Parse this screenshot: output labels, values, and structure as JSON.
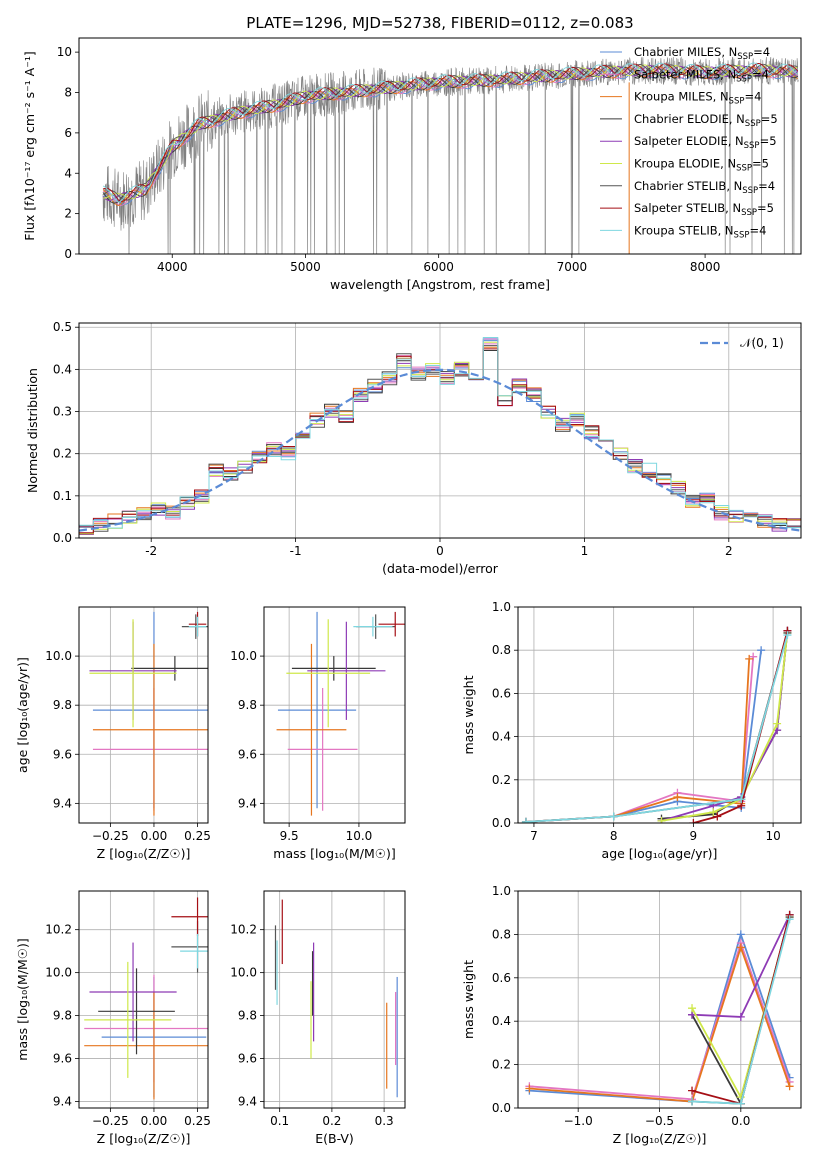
{
  "figure_title": "PLATE=1296, MJD=52738, FIBERID=0112, z=0.083",
  "colors": {
    "Chabrier MILES": "#5b8bd6",
    "Salpeter MILES": "#e377c2",
    "Kroupa MILES": "#e6761f",
    "Chabrier ELODIE": "#3a3a3a",
    "Salpeter ELODIE": "#8e3bb5",
    "Kroupa ELODIE": "#cfe84a",
    "Chabrier STELIB": "#555555",
    "Salpeter STELIB": "#a50f15",
    "Kroupa STELIB": "#7fd7e0",
    "data": "#808080",
    "normal": "#5b8bd6"
  },
  "chart_data": [
    {
      "type": "line",
      "id": "spectrum",
      "title": "PLATE=1296, MJD=52738, FIBERID=0112, z=0.083",
      "xlabel": "wavelength [Angstrom, rest frame]",
      "ylabel": "Flux [fλ10⁻¹⁷ erg cm⁻² s⁻¹ A⁻¹]",
      "xlim": [
        3300,
        8720
      ],
      "ylim": [
        0,
        10.7
      ],
      "xticks": [
        4000,
        5000,
        6000,
        7000,
        8000
      ],
      "yticks": [
        0,
        2,
        4,
        6,
        8,
        10
      ],
      "grid": false,
      "legend_position": "top-right",
      "legend": [
        {
          "label": "Chabrier MILES, N",
          "sub": "SSP",
          "tail": "=4"
        },
        {
          "label": "Salpeter MILES, N",
          "sub": "SSP",
          "tail": "=4"
        },
        {
          "label": "Kroupa MILES, N",
          "sub": "SSP",
          "tail": "=4"
        },
        {
          "label": "Chabrier ELODIE, N",
          "sub": "SSP",
          "tail": "=5"
        },
        {
          "label": "Salpeter ELODIE, N",
          "sub": "SSP",
          "tail": "=5"
        },
        {
          "label": "Kroupa ELODIE, N",
          "sub": "SSP",
          "tail": "=5"
        },
        {
          "label": "Chabrier STELIB, N",
          "sub": "SSP",
          "tail": "=4"
        },
        {
          "label": "Salpeter STELIB, N",
          "sub": "SSP",
          "tail": "=5"
        },
        {
          "label": "Kroupa STELIB, N",
          "sub": "SSP",
          "tail": "=4"
        }
      ],
      "series": [
        {
          "name": "data",
          "x": [
            3480,
            3600,
            3800,
            4000,
            4200,
            4500,
            4800,
            5000,
            5300,
            5600,
            6000,
            6400,
            6800,
            7200,
            7600,
            8000,
            8400,
            8700
          ],
          "y": [
            3.0,
            2.7,
            3.2,
            5.3,
            6.4,
            7.0,
            7.4,
            7.8,
            8.0,
            8.2,
            8.5,
            8.6,
            8.8,
            9.0,
            9.1,
            9.0,
            9.1,
            9.0
          ]
        },
        {
          "name": "Kroupa STELIB",
          "x": [
            3480,
            3600,
            3800,
            4000,
            4200,
            4500,
            4800,
            5000,
            5300,
            5600,
            6000,
            6400,
            6800,
            7200,
            7600,
            8000,
            8400,
            8700
          ],
          "y": [
            3.0,
            2.6,
            3.1,
            5.4,
            6.3,
            6.9,
            7.4,
            7.7,
            8.0,
            8.2,
            8.5,
            8.6,
            8.8,
            9.0,
            9.1,
            9.0,
            9.1,
            9.0
          ]
        }
      ]
    },
    {
      "type": "line",
      "id": "residuals",
      "xlabel": "(data-model)/error",
      "ylabel": "Normed distribution",
      "xlim": [
        -2.5,
        2.5
      ],
      "ylim": [
        0,
        0.51
      ],
      "xticks": [
        -2,
        -1,
        0,
        1,
        2
      ],
      "yticks": [
        0.0,
        0.1,
        0.2,
        0.3,
        0.4,
        0.5
      ],
      "grid": true,
      "legend_position": "top-right",
      "legend": [
        {
          "label": "𝒩(0, 1)"
        }
      ],
      "series": [
        {
          "name": "𝒩(0, 1)",
          "x": [
            -2.4,
            -2.0,
            -1.6,
            -1.2,
            -0.8,
            -0.4,
            0.0,
            0.4,
            0.8,
            1.2,
            1.6,
            2.0,
            2.4
          ],
          "y": [
            0.022,
            0.054,
            0.111,
            0.194,
            0.29,
            0.368,
            0.399,
            0.368,
            0.29,
            0.194,
            0.111,
            0.054,
            0.022
          ]
        }
      ],
      "hist_bins": [
        -2.5,
        -2.4,
        -2.3,
        -2.2,
        -2.1,
        -2.0,
        -1.9,
        -1.8,
        -1.7,
        -1.6,
        -1.5,
        -1.4,
        -1.3,
        -1.2,
        -1.1,
        -1.0,
        -0.9,
        -0.8,
        -0.7,
        -0.6,
        -0.5,
        -0.4,
        -0.3,
        -0.2,
        -0.1,
        0.0,
        0.1,
        0.2,
        0.3,
        0.4,
        0.5,
        0.6,
        0.7,
        0.8,
        0.9,
        1.0,
        1.1,
        1.2,
        1.3,
        1.4,
        1.5,
        1.6,
        1.7,
        1.8,
        1.9,
        2.0,
        2.1,
        2.2,
        2.3,
        2.4,
        2.5
      ],
      "hist_values": [
        0.02,
        0.03,
        0.04,
        0.05,
        0.06,
        0.07,
        0.06,
        0.08,
        0.1,
        0.16,
        0.15,
        0.17,
        0.19,
        0.21,
        0.2,
        0.25,
        0.28,
        0.3,
        0.29,
        0.34,
        0.36,
        0.38,
        0.42,
        0.39,
        0.4,
        0.38,
        0.4,
        0.37,
        0.46,
        0.33,
        0.36,
        0.34,
        0.3,
        0.27,
        0.28,
        0.25,
        0.22,
        0.2,
        0.17,
        0.16,
        0.14,
        0.12,
        0.09,
        0.1,
        0.06,
        0.05,
        0.05,
        0.04,
        0.03,
        0.03
      ],
      "hist_series": [
        "Chabrier MILES",
        "Salpeter MILES",
        "Kroupa MILES",
        "Chabrier ELODIE",
        "Salpeter ELODIE",
        "Kroupa ELODIE",
        "Chabrier STELIB",
        "Salpeter STELIB",
        "Kroupa STELIB"
      ]
    },
    {
      "type": "scatter",
      "id": "age_vs_Z",
      "xlabel": "Z [log₁₀(Z/Z☉)]",
      "ylabel": "age  [log₁₀(age/yr)]",
      "xlim": [
        -0.43,
        0.31
      ],
      "ylim": [
        9.32,
        10.2
      ],
      "xticks": [
        -0.25,
        0.0,
        0.25
      ],
      "xticklabels": [
        "−0.25",
        "0.00",
        "0.25"
      ],
      "yticks": [
        9.4,
        9.6,
        9.8,
        10.0
      ],
      "yticklabels": [
        "9.4",
        "9.6",
        "9.8",
        "10.0"
      ],
      "grid": true,
      "points": [
        {
          "s": "Chabrier MILES",
          "x": 0.0,
          "y": 9.78,
          "xerr": 0.35,
          "yerr": 0.4
        },
        {
          "s": "Salpeter MILES",
          "x": 0.0,
          "y": 9.62,
          "xerr": 0.35,
          "yerr": 0.25
        },
        {
          "s": "Kroupa MILES",
          "x": 0.0,
          "y": 9.7,
          "xerr": 0.35,
          "yerr": 0.35
        },
        {
          "s": "Chabrier ELODIE",
          "x": 0.12,
          "y": 9.95,
          "xerr": 0.25,
          "yerr": 0.05
        },
        {
          "s": "Salpeter ELODIE",
          "x": -0.12,
          "y": 9.94,
          "xerr": 0.25,
          "yerr": 0.2
        },
        {
          "s": "Kroupa ELODIE",
          "x": -0.12,
          "y": 9.93,
          "xerr": 0.25,
          "yerr": 0.22
        },
        {
          "s": "Chabrier STELIB",
          "x": 0.24,
          "y": 10.12,
          "xerr": 0.08,
          "yerr": 0.05
        },
        {
          "s": "Salpeter STELIB",
          "x": 0.25,
          "y": 10.13,
          "xerr": 0.05,
          "yerr": 0.05
        },
        {
          "s": "Kroupa STELIB",
          "x": 0.25,
          "y": 10.12,
          "xerr": 0.05,
          "yerr": 0.04
        }
      ]
    },
    {
      "type": "scatter",
      "id": "age_vs_mass",
      "xlabel": "mass [log₁₀(M/M☉)]",
      "ylabel": "",
      "xlim": [
        9.32,
        10.33
      ],
      "ylim": [
        9.32,
        10.2
      ],
      "xticks": [
        9.5,
        10.0
      ],
      "xticklabels": [
        "9.5",
        "10.0"
      ],
      "yticks": [
        9.4,
        9.6,
        9.8,
        10.0
      ],
      "yticklabels": [
        "9.4",
        "9.6",
        "9.8",
        "10.0"
      ],
      "grid": true,
      "points": [
        {
          "s": "Chabrier MILES",
          "x": 9.7,
          "y": 9.78,
          "xerr": 0.28,
          "yerr": 0.4
        },
        {
          "s": "Salpeter MILES",
          "x": 9.74,
          "y": 9.62,
          "xerr": 0.25,
          "yerr": 0.25
        },
        {
          "s": "Kroupa MILES",
          "x": 9.66,
          "y": 9.7,
          "xerr": 0.25,
          "yerr": 0.35
        },
        {
          "s": "Chabrier ELODIE",
          "x": 9.82,
          "y": 9.95,
          "xerr": 0.3,
          "yerr": 0.05
        },
        {
          "s": "Salpeter ELODIE",
          "x": 9.91,
          "y": 9.94,
          "xerr": 0.28,
          "yerr": 0.2
        },
        {
          "s": "Kroupa ELODIE",
          "x": 9.78,
          "y": 9.93,
          "xerr": 0.3,
          "yerr": 0.22
        },
        {
          "s": "Chabrier STELIB",
          "x": 10.12,
          "y": 10.12,
          "xerr": 0.14,
          "yerr": 0.05
        },
        {
          "s": "Salpeter STELIB",
          "x": 10.26,
          "y": 10.13,
          "xerr": 0.12,
          "yerr": 0.05
        },
        {
          "s": "Kroupa STELIB",
          "x": 10.1,
          "y": 10.12,
          "xerr": 0.14,
          "yerr": 0.04
        }
      ]
    },
    {
      "type": "line",
      "id": "massweight_vs_age",
      "xlabel": "age  [log₁₀(age/yr)]",
      "ylabel": "mass weight",
      "xlim": [
        6.8,
        10.35
      ],
      "ylim": [
        0,
        1.0
      ],
      "xticks": [
        7,
        8,
        9,
        10
      ],
      "xticklabels": [
        "7",
        "8",
        "9",
        "10"
      ],
      "yticks": [
        0.0,
        0.2,
        0.4,
        0.6,
        0.8,
        1.0
      ],
      "yticklabels": [
        "0.0",
        "0.2",
        "0.4",
        "0.6",
        "0.8",
        "1.0"
      ],
      "grid": true,
      "series": [
        {
          "name": "Chabrier MILES",
          "x": [
            6.9,
            8.0,
            8.8,
            9.6,
            9.85
          ],
          "y": [
            0.005,
            0.03,
            0.1,
            0.07,
            0.8
          ]
        },
        {
          "name": "Salpeter MILES",
          "x": [
            6.9,
            8.0,
            8.8,
            9.6,
            9.75
          ],
          "y": [
            0.005,
            0.03,
            0.14,
            0.1,
            0.77
          ]
        },
        {
          "name": "Kroupa MILES",
          "x": [
            6.9,
            8.0,
            8.8,
            9.6,
            9.7
          ],
          "y": [
            0.005,
            0.03,
            0.12,
            0.09,
            0.76
          ]
        },
        {
          "name": "Chabrier ELODIE",
          "x": [
            8.6,
            9.25,
            9.6,
            10.05,
            10.18
          ],
          "y": [
            0.02,
            0.04,
            0.12,
            0.43,
            0.89
          ]
        },
        {
          "name": "Salpeter ELODIE",
          "x": [
            8.6,
            9.25,
            9.6,
            10.05,
            10.18
          ],
          "y": [
            0.01,
            0.08,
            0.12,
            0.43,
            0.89
          ]
        },
        {
          "name": "Kroupa ELODIE",
          "x": [
            8.6,
            9.25,
            9.6,
            10.05,
            10.18
          ],
          "y": [
            0.01,
            0.05,
            0.11,
            0.46,
            0.88
          ]
        },
        {
          "name": "Chabrier STELIB",
          "x": [
            6.9,
            8.0,
            9.6,
            10.18
          ],
          "y": [
            0.005,
            0.03,
            0.11,
            0.88
          ]
        },
        {
          "name": "Salpeter STELIB",
          "x": [
            9.0,
            9.3,
            9.6,
            10.18
          ],
          "y": [
            0.0,
            0.03,
            0.08,
            0.89
          ]
        },
        {
          "name": "Kroupa STELIB",
          "x": [
            6.9,
            8.0,
            9.6,
            10.18
          ],
          "y": [
            0.005,
            0.03,
            0.11,
            0.87
          ]
        }
      ]
    },
    {
      "type": "scatter",
      "id": "mass_vs_Z",
      "xlabel": "Z [log₁₀(Z/Z☉)]",
      "ylabel": "mass [log₁₀(M/M☉)]",
      "xlim": [
        -0.43,
        0.31
      ],
      "ylim": [
        9.37,
        10.38
      ],
      "xticks": [
        -0.25,
        0.0,
        0.25
      ],
      "xticklabels": [
        "−0.25",
        "0.00",
        "0.25"
      ],
      "yticks": [
        9.4,
        9.6,
        9.8,
        10.0,
        10.2
      ],
      "yticklabels": [
        "9.4",
        "9.6",
        "9.8",
        "10.0",
        "10.2"
      ],
      "grid": true,
      "points": [
        {
          "s": "Chabrier MILES",
          "x": 0.0,
          "y": 9.7,
          "xerr": 0.3,
          "yerr": 0.28
        },
        {
          "s": "Salpeter MILES",
          "x": 0.0,
          "y": 9.74,
          "xerr": 0.4,
          "yerr": 0.25
        },
        {
          "s": "Kroupa MILES",
          "x": 0.0,
          "y": 9.66,
          "xerr": 0.4,
          "yerr": 0.25
        },
        {
          "s": "Chabrier ELODIE",
          "x": -0.1,
          "y": 9.82,
          "xerr": 0.22,
          "yerr": 0.2
        },
        {
          "s": "Salpeter ELODIE",
          "x": -0.12,
          "y": 9.91,
          "xerr": 0.25,
          "yerr": 0.23
        },
        {
          "s": "Kroupa ELODIE",
          "x": -0.15,
          "y": 9.78,
          "xerr": 0.25,
          "yerr": 0.27
        },
        {
          "s": "Chabrier STELIB",
          "x": 0.25,
          "y": 10.12,
          "xerr": 0.15,
          "yerr": 0.12
        },
        {
          "s": "Salpeter STELIB",
          "x": 0.25,
          "y": 10.26,
          "xerr": 0.15,
          "yerr": 0.09
        },
        {
          "s": "Kroupa STELIB",
          "x": 0.25,
          "y": 10.1,
          "xerr": 0.1,
          "yerr": 0.08
        }
      ]
    },
    {
      "type": "scatter",
      "id": "mass_vs_ebv",
      "xlabel": "E(B-V)",
      "ylabel": "",
      "xlim": [
        0.07,
        0.34
      ],
      "ylim": [
        9.37,
        10.38
      ],
      "xticks": [
        0.1,
        0.2,
        0.3
      ],
      "xticklabels": [
        "0.1",
        "0.2",
        "0.3"
      ],
      "yticks": [
        9.4,
        9.6,
        9.8,
        10.0,
        10.2
      ],
      "yticklabels": [
        "9.4",
        "9.6",
        "9.8",
        "10.0",
        "10.2"
      ],
      "grid": true,
      "points": [
        {
          "s": "Chabrier MILES",
          "x": 0.325,
          "y": 9.7,
          "xerr": 0.0,
          "yerr": 0.28
        },
        {
          "s": "Salpeter MILES",
          "x": 0.322,
          "y": 9.74,
          "xerr": 0.0,
          "yerr": 0.17
        },
        {
          "s": "Kroupa MILES",
          "x": 0.305,
          "y": 9.66,
          "xerr": 0.0,
          "yerr": 0.2
        },
        {
          "s": "Chabrier ELODIE",
          "x": 0.163,
          "y": 9.95,
          "xerr": 0.0,
          "yerr": 0.15
        },
        {
          "s": "Salpeter ELODIE",
          "x": 0.165,
          "y": 9.91,
          "xerr": 0.0,
          "yerr": 0.23
        },
        {
          "s": "Kroupa ELODIE",
          "x": 0.16,
          "y": 9.78,
          "xerr": 0.0,
          "yerr": 0.18
        },
        {
          "s": "Chabrier STELIB",
          "x": 0.092,
          "y": 10.07,
          "xerr": 0.0,
          "yerr": 0.15
        },
        {
          "s": "Salpeter STELIB",
          "x": 0.105,
          "y": 10.19,
          "xerr": 0.0,
          "yerr": 0.15
        },
        {
          "s": "Kroupa STELIB",
          "x": 0.095,
          "y": 10.0,
          "xerr": 0.0,
          "yerr": 0.15
        }
      ]
    },
    {
      "type": "line",
      "id": "massweight_vs_Z",
      "xlabel": "Z [log₁₀(Z/Z☉)]",
      "ylabel": "mass weight",
      "xlim": [
        -1.37,
        0.37
      ],
      "ylim": [
        0,
        1.0
      ],
      "xticks": [
        -1.0,
        -0.5,
        0.0
      ],
      "xticklabels": [
        "−1.0",
        "−0.5",
        "0.0"
      ],
      "yticks": [
        0.0,
        0.2,
        0.4,
        0.6,
        0.8,
        1.0
      ],
      "yticklabels": [
        "0.0",
        "0.2",
        "0.4",
        "0.6",
        "0.8",
        "1.0"
      ],
      "grid": true,
      "series": [
        {
          "name": "Chabrier MILES",
          "x": [
            -1.3,
            -0.3,
            0.0,
            0.3
          ],
          "y": [
            0.08,
            0.03,
            0.8,
            0.14
          ]
        },
        {
          "name": "Salpeter MILES",
          "x": [
            -1.3,
            -0.3,
            0.0,
            0.3
          ],
          "y": [
            0.1,
            0.04,
            0.76,
            0.12
          ]
        },
        {
          "name": "Kroupa MILES",
          "x": [
            -1.3,
            -0.3,
            0.0,
            0.3
          ],
          "y": [
            0.09,
            0.03,
            0.74,
            0.1
          ]
        },
        {
          "name": "Chabrier ELODIE",
          "x": [
            -0.3,
            0.0,
            0.3
          ],
          "y": [
            0.43,
            0.02,
            0.89
          ]
        },
        {
          "name": "Salpeter ELODIE",
          "x": [
            -0.3,
            0.0,
            0.3
          ],
          "y": [
            0.43,
            0.42,
            0.89
          ]
        },
        {
          "name": "Kroupa ELODIE",
          "x": [
            -0.3,
            0.0,
            0.3
          ],
          "y": [
            0.46,
            0.05,
            0.88
          ]
        },
        {
          "name": "Chabrier STELIB",
          "x": [
            -0.3,
            0.0,
            0.3
          ],
          "y": [
            0.03,
            0.02,
            0.88
          ]
        },
        {
          "name": "Salpeter STELIB",
          "x": [
            -0.3,
            0.0,
            0.3
          ],
          "y": [
            0.08,
            0.02,
            0.89
          ]
        },
        {
          "name": "Kroupa STELIB",
          "x": [
            -0.3,
            0.0,
            0.3
          ],
          "y": [
            0.03,
            0.02,
            0.87
          ]
        }
      ]
    }
  ]
}
